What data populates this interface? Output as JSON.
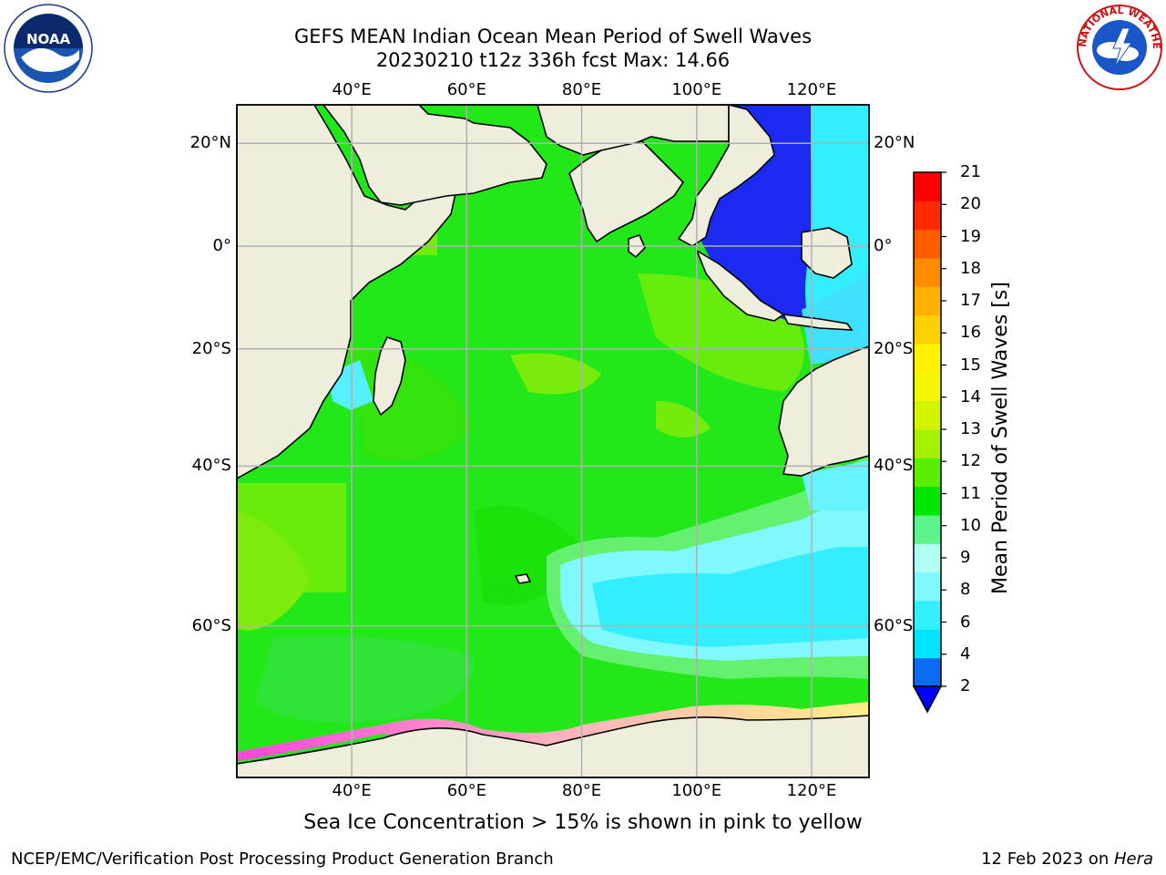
{
  "title": {
    "line1": "GEFS MEAN Indian Ocean Mean Period of Swell Waves",
    "line2": "20230210 t12z 336h fcst   Max: 14.66"
  },
  "logos": {
    "left": {
      "name": "noaa-logo",
      "text": "NOAA"
    },
    "right": {
      "name": "nws-logo",
      "text": "NATIONAL WEATHER SERVICE"
    }
  },
  "map": {
    "lon_ticks_top": [
      "40°E",
      "60°E",
      "80°E",
      "100°E",
      "120°E"
    ],
    "lon_ticks_bottom": [
      "40°E",
      "60°E",
      "80°E",
      "100°E",
      "120°E"
    ],
    "lat_ticks_left": [
      "20°N",
      "0°",
      "20°S",
      "40°S",
      "60°S"
    ],
    "lat_ticks_right": [
      "20°N",
      "0°",
      "20°S",
      "40°S",
      "60°S"
    ],
    "lon_values": [
      40,
      60,
      80,
      100,
      120
    ],
    "lat_values": [
      20,
      0,
      -20,
      -40,
      -60
    ],
    "extent": {
      "lon": [
        20,
        130
      ],
      "lat": [
        -72,
        27
      ]
    },
    "land_color": "#efeedd",
    "grid_color": "#b0b0b0"
  },
  "colorbar": {
    "label": "Mean Period of Swell Waves [s]",
    "ticks": [
      "21",
      "20",
      "19",
      "18",
      "17",
      "16",
      "15",
      "14",
      "13",
      "12",
      "11",
      "10",
      "9",
      "8",
      "6",
      "4",
      "2"
    ],
    "colors_bottom_to_top": [
      "#0a6cf0",
      "#00e5ff",
      "#33f0ff",
      "#80f8ff",
      "#b0fff2",
      "#5cf58c",
      "#00e600",
      "#5aef00",
      "#a5f000",
      "#d4f500",
      "#f4f700",
      "#fff200",
      "#ffd000",
      "#ffb000",
      "#ff8c00",
      "#ff5c00",
      "#ff2a00",
      "#ff0000"
    ],
    "extend_color": "#0000ff"
  },
  "note": "Sea Ice Concentration > 15% is shown in pink to yellow",
  "footer": {
    "left": "NCEP/EMC/Verification Post Processing Product Generation Branch",
    "right_date": "12 Feb 2023 on ",
    "right_host": "Hera"
  }
}
